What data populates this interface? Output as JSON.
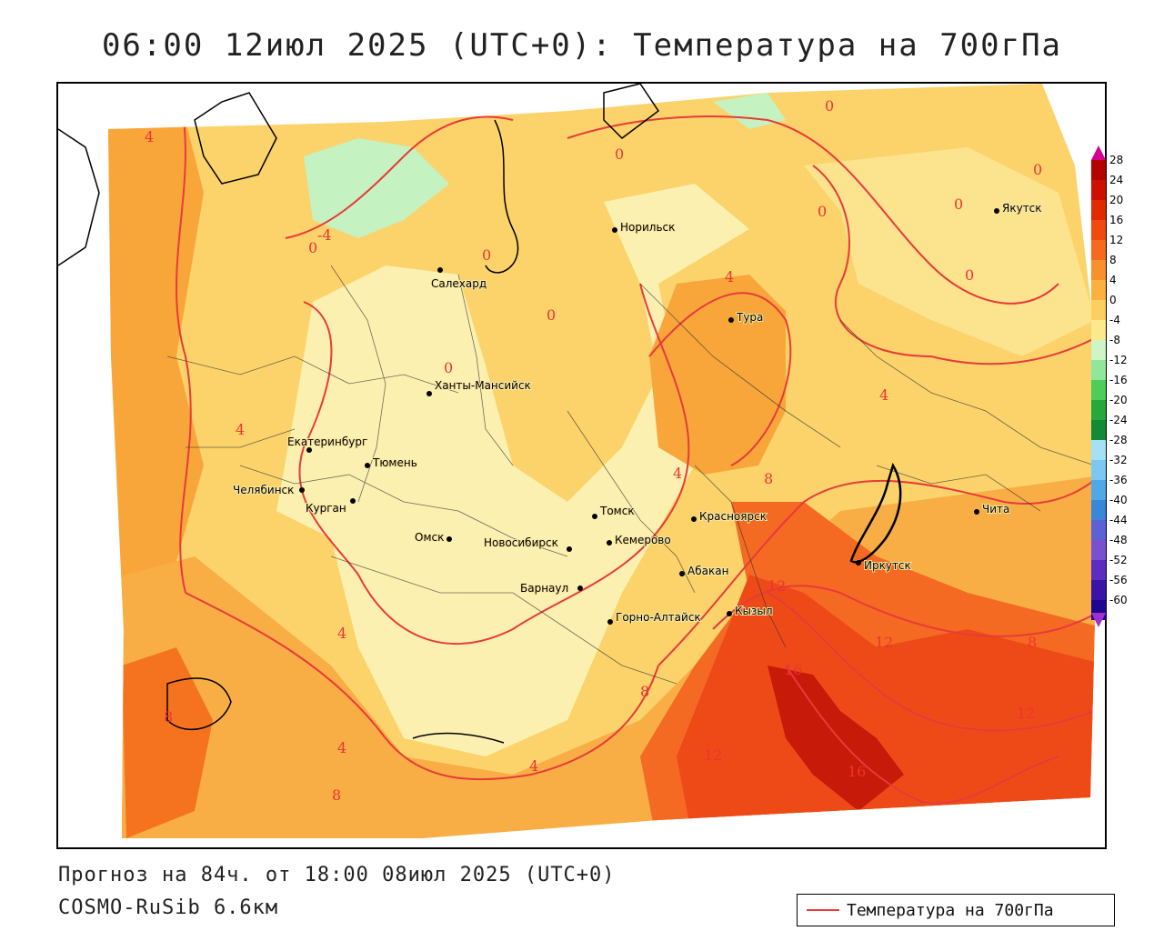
{
  "title": "06:00 12июл 2025 (UTC+0): Температура на 700гПа",
  "footer": {
    "forecast": "Прогноз на 84ч. от 18:00 08июл 2025 (UTC+0)",
    "model": "COSMO-RuSib 6.6км"
  },
  "legend": {
    "label": "Температура на 700гПа",
    "color": "#e83a3a"
  },
  "colorbar": {
    "labels": [
      "28",
      "24",
      "20",
      "16",
      "12",
      "8",
      "4",
      "0",
      "-4",
      "-8",
      "-12",
      "-16",
      "-20",
      "-24",
      "-28",
      "-32",
      "-36",
      "-40",
      "-44",
      "-48",
      "-52",
      "-56",
      "-60"
    ],
    "colors": [
      "#b30000",
      "#cc1100",
      "#e02a00",
      "#f04a10",
      "#f56a20",
      "#f8902c",
      "#fbb040",
      "#fcd060",
      "#fbe98c",
      "#cdf5c8",
      "#90e69a",
      "#50cc5a",
      "#27a83a",
      "#138a35",
      "#a6e0f5",
      "#7cc8f0",
      "#50a8e6",
      "#3a86d8",
      "#5b62d8",
      "#7a50d2",
      "#5d2cc0",
      "#3a14a8",
      "#1c0890"
    ]
  },
  "isotherm_labels": [
    "4",
    "-4",
    "0",
    "0",
    "0",
    "0",
    "0",
    "0",
    "0",
    "0",
    "0",
    "0",
    "4",
    "4",
    "4",
    "4",
    "4",
    "4",
    "4",
    "8",
    "8",
    "8",
    "8",
    "8",
    "12",
    "12",
    "12",
    "12",
    "16",
    "16"
  ],
  "cities": [
    {
      "name": "Норильск"
    },
    {
      "name": "Якутск"
    },
    {
      "name": "Салехард"
    },
    {
      "name": "Тура"
    },
    {
      "name": "Ханты-Мансийск"
    },
    {
      "name": "Екатеринбург"
    },
    {
      "name": "Тюмень"
    },
    {
      "name": "Челябинск"
    },
    {
      "name": "Курган"
    },
    {
      "name": "Омск"
    },
    {
      "name": "Новосибирск"
    },
    {
      "name": "Томск"
    },
    {
      "name": "Красноярск"
    },
    {
      "name": "Кемерово"
    },
    {
      "name": "Абакан"
    },
    {
      "name": "Барнаул"
    },
    {
      "name": "Горно-Алтайск"
    },
    {
      "name": "Кызыл"
    },
    {
      "name": "Иркутск"
    },
    {
      "name": "Чита"
    }
  ]
}
